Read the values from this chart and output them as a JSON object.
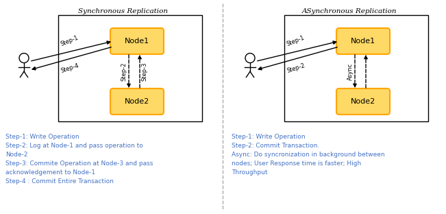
{
  "title_left": "Synchronous Replication",
  "title_right": "ASynchronous Replication",
  "node_color": "#FFD966",
  "node_edge_color": "#FFA500",
  "node1_label": "Node1",
  "node2_label": "Node2",
  "text_color_blue": "#4472C4",
  "left_steps": [
    "Step-1: Write Operation",
    "Step-2: Log at Node-1 and pass operation to",
    "Node-2",
    "Step-3: Commite Operation at Node-3 and pass",
    "acknowledgement to Node-1",
    "Step-4 : Commit Entire Transaction"
  ],
  "right_steps": [
    "Step-1: Write Operation",
    "Step-2: Commit Transaction.",
    "Async: Do syncronization in background between",
    "nodes; User Response time is faster; High",
    "Throughput"
  ],
  "background": "#FFFFFF"
}
